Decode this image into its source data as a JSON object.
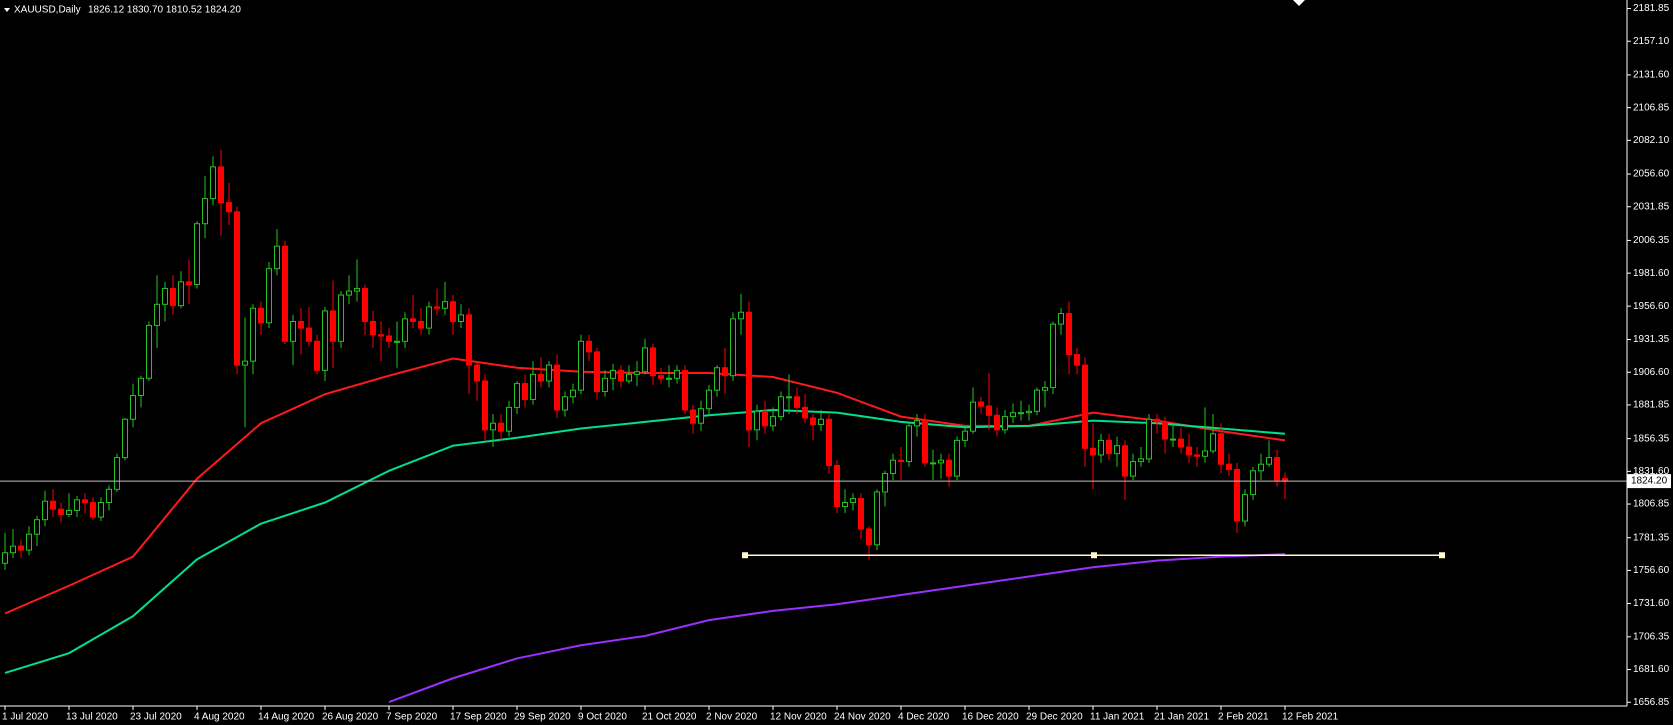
{
  "chart_data": {
    "type": "candlestick",
    "title": "XAUUSD,Daily",
    "ohlc_label": "1826.12 1830.70 1810.52 1824.20",
    "up_color": "#22c322",
    "down_color": "#ff0000",
    "ylim": [
      1654,
      2188.3
    ],
    "yticks": [
      1656.85,
      {
        "value": 1681.6,
        "label": "1681.60"
      },
      1706.35,
      {
        "value": 1731.6,
        "label": "1731.60"
      },
      {
        "value": 1756.6,
        "label": "1756.60"
      },
      1781.35,
      1806.85,
      {
        "value": 1831.6,
        "label": "1831.60"
      },
      1856.35,
      1881.85,
      {
        "value": 1906.6,
        "label": "1906.60"
      },
      1931.35,
      {
        "value": 1956.6,
        "label": "1956.60"
      },
      {
        "value": 1981.6,
        "label": "1981.60"
      },
      2006.35,
      2031.85,
      {
        "value": 2056.6,
        "label": "2056.60"
      },
      {
        "value": 2082.1,
        "label": "2082.10"
      },
      2106.85,
      {
        "value": 2131.6,
        "label": "2131.60"
      },
      {
        "value": 2157.1,
        "label": "2157.10"
      },
      2181.85
    ],
    "last_price": {
      "value": 1824.2,
      "label": "1824.20"
    },
    "support_level": 1768.1,
    "categories": [
      "1 Jul 2020",
      null,
      null,
      null,
      null,
      null,
      null,
      null,
      "13 Jul 2020",
      null,
      null,
      null,
      null,
      null,
      null,
      null,
      "23 Jul 2020",
      null,
      null,
      null,
      null,
      null,
      null,
      null,
      "4 Aug 2020",
      null,
      null,
      null,
      null,
      null,
      null,
      null,
      "14 Aug 2020",
      null,
      null,
      null,
      null,
      null,
      null,
      null,
      "26 Aug 2020",
      null,
      null,
      null,
      null,
      null,
      null,
      null,
      "7 Sep 2020",
      null,
      null,
      null,
      null,
      null,
      null,
      null,
      "17 Sep 2020",
      null,
      null,
      null,
      null,
      null,
      null,
      null,
      "29 Sep 2020",
      null,
      null,
      null,
      null,
      null,
      null,
      null,
      "9 Oct 2020",
      null,
      null,
      null,
      null,
      null,
      null,
      null,
      "21 Oct 2020",
      null,
      null,
      null,
      null,
      null,
      null,
      null,
      "2 Nov 2020",
      null,
      null,
      null,
      null,
      null,
      null,
      null,
      "12 Nov 2020",
      null,
      null,
      null,
      null,
      null,
      null,
      null,
      "24 Nov 2020",
      null,
      null,
      null,
      null,
      null,
      null,
      null,
      "4 Dec 2020",
      null,
      null,
      null,
      null,
      null,
      null,
      null,
      "16 Dec 2020",
      null,
      null,
      null,
      null,
      null,
      null,
      null,
      "29 Dec 2020",
      null,
      null,
      null,
      null,
      null,
      null,
      null,
      "11 Jan 2021",
      null,
      null,
      null,
      null,
      null,
      null,
      null,
      "21 Jan 2021",
      null,
      null,
      null,
      null,
      null,
      null,
      null,
      "2 Feb 2021",
      null,
      null,
      null,
      null,
      null,
      null,
      null,
      "12 Feb 2021"
    ],
    "candles": [
      [
        1762,
        1785,
        1757,
        1770
      ],
      [
        1770,
        1788,
        1766,
        1775
      ],
      [
        1775,
        1780,
        1766,
        1772
      ],
      [
        1772,
        1790,
        1768,
        1784
      ],
      [
        1784,
        1798,
        1775,
        1795
      ],
      [
        1795,
        1817,
        1790,
        1809
      ],
      [
        1809,
        1818,
        1797,
        1803
      ],
      [
        1803,
        1808,
        1793,
        1799
      ],
      [
        1799,
        1815,
        1797,
        1802
      ],
      [
        1802,
        1813,
        1797,
        1810
      ],
      [
        1810,
        1815,
        1800,
        1808
      ],
      [
        1808,
        1812,
        1795,
        1797
      ],
      [
        1797,
        1812,
        1794,
        1808
      ],
      [
        1808,
        1821,
        1802,
        1818
      ],
      [
        1818,
        1845,
        1816,
        1842
      ],
      [
        1842,
        1872,
        1840,
        1871
      ],
      [
        1871,
        1898,
        1865,
        1889
      ],
      [
        1889,
        1904,
        1880,
        1902
      ],
      [
        1902,
        1945,
        1900,
        1942
      ],
      [
        1942,
        1980,
        1925,
        1958
      ],
      [
        1958,
        1975,
        1945,
        1970
      ],
      [
        1970,
        1980,
        1950,
        1957
      ],
      [
        1957,
        1983,
        1955,
        1975
      ],
      [
        1975,
        1992,
        1958,
        1973
      ],
      [
        1973,
        2021,
        1970,
        2019
      ],
      [
        2019,
        2055,
        2008,
        2038
      ],
      [
        2038,
        2070,
        2033,
        2062
      ],
      [
        2062,
        2075,
        2010,
        2035
      ],
      [
        2035,
        2050,
        2018,
        2028
      ],
      [
        2028,
        2032,
        1905,
        1912
      ],
      [
        1912,
        1948,
        1865,
        1915
      ],
      [
        1915,
        1958,
        1905,
        1955
      ],
      [
        1955,
        1960,
        1935,
        1944
      ],
      [
        1944,
        1990,
        1940,
        1985
      ],
      [
        1985,
        2015,
        1980,
        2002
      ],
      [
        2002,
        2006,
        1928,
        1930
      ],
      [
        1930,
        1950,
        1912,
        1945
      ],
      [
        1945,
        1955,
        1920,
        1940
      ],
      [
        1940,
        1956,
        1926,
        1930
      ],
      [
        1930,
        1935,
        1905,
        1908
      ],
      [
        1908,
        1956,
        1900,
        1953
      ],
      [
        1953,
        1976,
        1910,
        1930
      ],
      [
        1930,
        1968,
        1925,
        1965
      ],
      [
        1965,
        1980,
        1958,
        1968
      ],
      [
        1968,
        1992,
        1960,
        1970
      ],
      [
        1970,
        1973,
        1935,
        1945
      ],
      [
        1945,
        1953,
        1925,
        1935
      ],
      [
        1935,
        1945,
        1915,
        1934
      ],
      [
        1934,
        1940,
        1925,
        1930
      ],
      [
        1930,
        1945,
        1910,
        1930
      ],
      [
        1930,
        1952,
        1925,
        1947
      ],
      [
        1947,
        1965,
        1940,
        1945
      ],
      [
        1945,
        1955,
        1935,
        1940
      ],
      [
        1940,
        1960,
        1935,
        1956
      ],
      [
        1956,
        1970,
        1950,
        1955
      ],
      [
        1955,
        1975,
        1950,
        1960
      ],
      [
        1960,
        1965,
        1935,
        1945
      ],
      [
        1945,
        1958,
        1940,
        1950
      ],
      [
        1950,
        1955,
        1890,
        1912
      ],
      [
        1912,
        1915,
        1885,
        1900
      ],
      [
        1900,
        1905,
        1855,
        1863
      ],
      [
        1863,
        1875,
        1850,
        1868
      ],
      [
        1868,
        1875,
        1855,
        1862
      ],
      [
        1862,
        1885,
        1858,
        1880
      ],
      [
        1880,
        1900,
        1875,
        1898
      ],
      [
        1898,
        1905,
        1880,
        1886
      ],
      [
        1886,
        1915,
        1882,
        1905
      ],
      [
        1905,
        1918,
        1895,
        1900
      ],
      [
        1900,
        1915,
        1895,
        1912
      ],
      [
        1912,
        1920,
        1872,
        1878
      ],
      [
        1878,
        1892,
        1873,
        1888
      ],
      [
        1888,
        1898,
        1883,
        1893
      ],
      [
        1893,
        1935,
        1890,
        1930
      ],
      [
        1930,
        1935,
        1915,
        1922
      ],
      [
        1922,
        1925,
        1886,
        1892
      ],
      [
        1892,
        1908,
        1888,
        1902
      ],
      [
        1902,
        1913,
        1893,
        1908
      ],
      [
        1908,
        1912,
        1895,
        1900
      ],
      [
        1900,
        1912,
        1898,
        1905
      ],
      [
        1905,
        1915,
        1896,
        1907
      ],
      [
        1907,
        1932,
        1905,
        1925
      ],
      [
        1925,
        1928,
        1897,
        1904
      ],
      [
        1904,
        1910,
        1898,
        1902
      ],
      [
        1902,
        1912,
        1895,
        1902
      ],
      [
        1902,
        1912,
        1898,
        1908
      ],
      [
        1908,
        1912,
        1875,
        1878
      ],
      [
        1878,
        1882,
        1860,
        1868
      ],
      [
        1868,
        1885,
        1862,
        1879
      ],
      [
        1879,
        1897,
        1875,
        1893
      ],
      [
        1893,
        1912,
        1888,
        1910
      ],
      [
        1910,
        1925,
        1890,
        1904
      ],
      [
        1904,
        1952,
        1900,
        1947
      ],
      [
        1947,
        1966,
        1935,
        1952
      ],
      [
        1952,
        1960,
        1850,
        1863
      ],
      [
        1863,
        1882,
        1855,
        1877
      ],
      [
        1877,
        1885,
        1860,
        1866
      ],
      [
        1866,
        1880,
        1862,
        1873
      ],
      [
        1873,
        1892,
        1870,
        1888
      ],
      [
        1888,
        1905,
        1875,
        1888
      ],
      [
        1888,
        1895,
        1875,
        1880
      ],
      [
        1880,
        1890,
        1868,
        1872
      ],
      [
        1872,
        1875,
        1855,
        1867
      ],
      [
        1867,
        1878,
        1862,
        1871
      ],
      [
        1871,
        1875,
        1830,
        1836
      ],
      [
        1836,
        1840,
        1800,
        1805
      ],
      [
        1805,
        1818,
        1800,
        1808
      ],
      [
        1808,
        1815,
        1802,
        1811
      ],
      [
        1811,
        1815,
        1780,
        1788
      ],
      [
        1788,
        1790,
        1765,
        1776
      ],
      [
        1776,
        1818,
        1772,
        1816
      ],
      [
        1816,
        1832,
        1805,
        1830
      ],
      [
        1830,
        1845,
        1825,
        1840
      ],
      [
        1840,
        1850,
        1825,
        1839
      ],
      [
        1839,
        1868,
        1835,
        1866
      ],
      [
        1866,
        1875,
        1858,
        1870
      ],
      [
        1870,
        1875,
        1835,
        1838
      ],
      [
        1838,
        1848,
        1825,
        1838
      ],
      [
        1838,
        1845,
        1826,
        1840
      ],
      [
        1840,
        1845,
        1820,
        1828
      ],
      [
        1828,
        1858,
        1825,
        1855
      ],
      [
        1855,
        1865,
        1850,
        1862
      ],
      [
        1862,
        1895,
        1860,
        1884
      ],
      [
        1884,
        1888,
        1875,
        1881
      ],
      [
        1881,
        1906,
        1863,
        1874
      ],
      [
        1874,
        1880,
        1858,
        1863
      ],
      [
        1863,
        1878,
        1860,
        1873
      ],
      [
        1873,
        1883,
        1868,
        1876
      ],
      [
        1876,
        1885,
        1870,
        1876
      ],
      [
        1876,
        1882,
        1870,
        1877
      ],
      [
        1877,
        1895,
        1874,
        1893
      ],
      [
        1893,
        1900,
        1880,
        1895
      ],
      [
        1895,
        1945,
        1890,
        1943
      ],
      [
        1943,
        1955,
        1935,
        1951
      ],
      [
        1951,
        1960,
        1905,
        1920
      ],
      [
        1920,
        1925,
        1905,
        1912
      ],
      [
        1912,
        1918,
        1835,
        1849
      ],
      [
        1849,
        1868,
        1818,
        1844
      ],
      [
        1844,
        1860,
        1838,
        1855
      ],
      [
        1855,
        1860,
        1840,
        1845
      ],
      [
        1845,
        1858,
        1835,
        1851
      ],
      [
        1851,
        1855,
        1810,
        1828
      ],
      [
        1828,
        1845,
        1825,
        1839
      ],
      [
        1839,
        1850,
        1835,
        1841
      ],
      [
        1841,
        1875,
        1838,
        1871
      ],
      [
        1871,
        1875,
        1860,
        1869
      ],
      [
        1869,
        1873,
        1845,
        1856
      ],
      [
        1856,
        1868,
        1850,
        1856
      ],
      [
        1856,
        1865,
        1845,
        1850
      ],
      [
        1850,
        1860,
        1838,
        1844
      ],
      [
        1844,
        1850,
        1835,
        1843
      ],
      [
        1843,
        1880,
        1838,
        1847
      ],
      [
        1847,
        1875,
        1845,
        1860
      ],
      [
        1860,
        1868,
        1830,
        1837
      ],
      [
        1837,
        1845,
        1828,
        1833
      ],
      [
        1833,
        1838,
        1785,
        1794
      ],
      [
        1794,
        1818,
        1790,
        1814
      ],
      [
        1814,
        1835,
        1810,
        1832
      ],
      [
        1832,
        1845,
        1825,
        1837
      ],
      [
        1837,
        1855,
        1835,
        1842
      ],
      [
        1842,
        1848,
        1820,
        1825
      ],
      [
        1826.12,
        1830.7,
        1810.52,
        1824.2
      ]
    ],
    "series": [
      {
        "color": "#ff1a1a",
        "x": [
          0,
          8,
          16,
          24,
          32,
          40,
          48,
          56,
          64,
          72,
          80,
          88,
          96,
          104,
          112,
          120,
          128,
          136,
          144,
          152,
          160
        ],
        "values": [
          1724,
          1745,
          1767,
          1826,
          1868,
          1890,
          1904,
          1917,
          1910,
          1907,
          1906,
          1906,
          1903,
          1891,
          1873,
          1866,
          1866,
          1876,
          1870,
          1862,
          1855
        ]
      },
      {
        "color": "#00e08a",
        "x": [
          0,
          8,
          16,
          24,
          32,
          40,
          48,
          56,
          64,
          72,
          80,
          88,
          96,
          104,
          112,
          120,
          128,
          136,
          144,
          152,
          160
        ],
        "values": [
          1679,
          1694,
          1722,
          1765,
          1792,
          1808,
          1832,
          1851,
          1857,
          1864,
          1869,
          1874,
          1878,
          1876,
          1869,
          1865,
          1866,
          1870,
          1868,
          1864,
          1860
        ]
      },
      {
        "color": "#9b30ff",
        "x": [
          48,
          56,
          64,
          72,
          80,
          88,
          96,
          104,
          112,
          120,
          128,
          136,
          144,
          152,
          160
        ],
        "values": [
          1657,
          1675,
          1690,
          1700,
          1707,
          1719,
          1726,
          1731,
          1738,
          1745,
          1752,
          1759,
          1764,
          1767,
          1768.9
        ]
      }
    ]
  }
}
